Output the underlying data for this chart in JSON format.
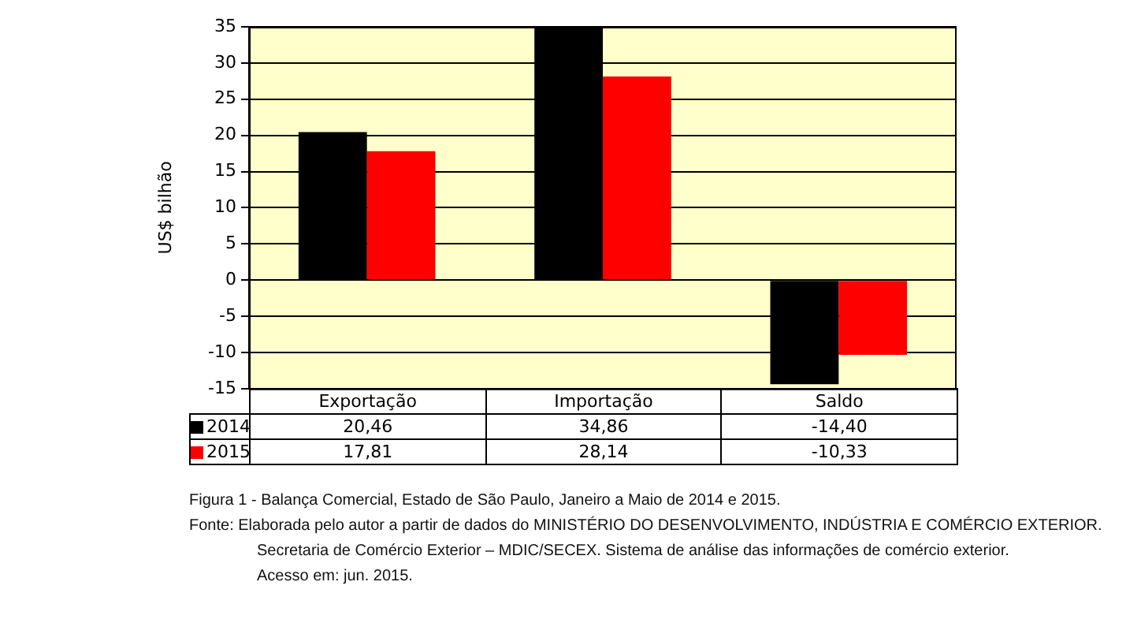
{
  "chart_data": {
    "type": "bar",
    "title": "Figura 1 - Balança Comercial, Estado de São Paulo, Janeiro a Maio de 2014 e 2015.",
    "ylabel": "US$ bilhão",
    "categories": [
      "Exportação",
      "Importação",
      "Saldo"
    ],
    "series": [
      {
        "name": "2014",
        "color": "#000000",
        "values": [
          20.46,
          34.86,
          -14.4
        ],
        "value_labels": [
          "20,46",
          "34,86",
          "-14,40"
        ]
      },
      {
        "name": "2015",
        "color": "#ff0000",
        "values": [
          17.81,
          28.14,
          -10.33
        ],
        "value_labels": [
          "17,81",
          "28,14",
          "-10,33"
        ]
      }
    ],
    "ylim": [
      -15,
      35
    ],
    "yticks": [
      -15,
      -10,
      -5,
      0,
      5,
      10,
      15,
      20,
      25,
      30,
      35
    ],
    "grid": "y",
    "legend": "bottom left",
    "annotations": [
      "Fonte: Elaborada pelo autor a partir de dados do MINISTÉRIO DO DESENVOLVIMENTO, INDÚSTRIA E COMÉRCIO EXTERIOR.",
      "Secretaria de Comércio Exterior – MDIC/SECEX. Sistema de análise das informações de comércio exterior.",
      "Acesso em: jun. 2015."
    ]
  }
}
